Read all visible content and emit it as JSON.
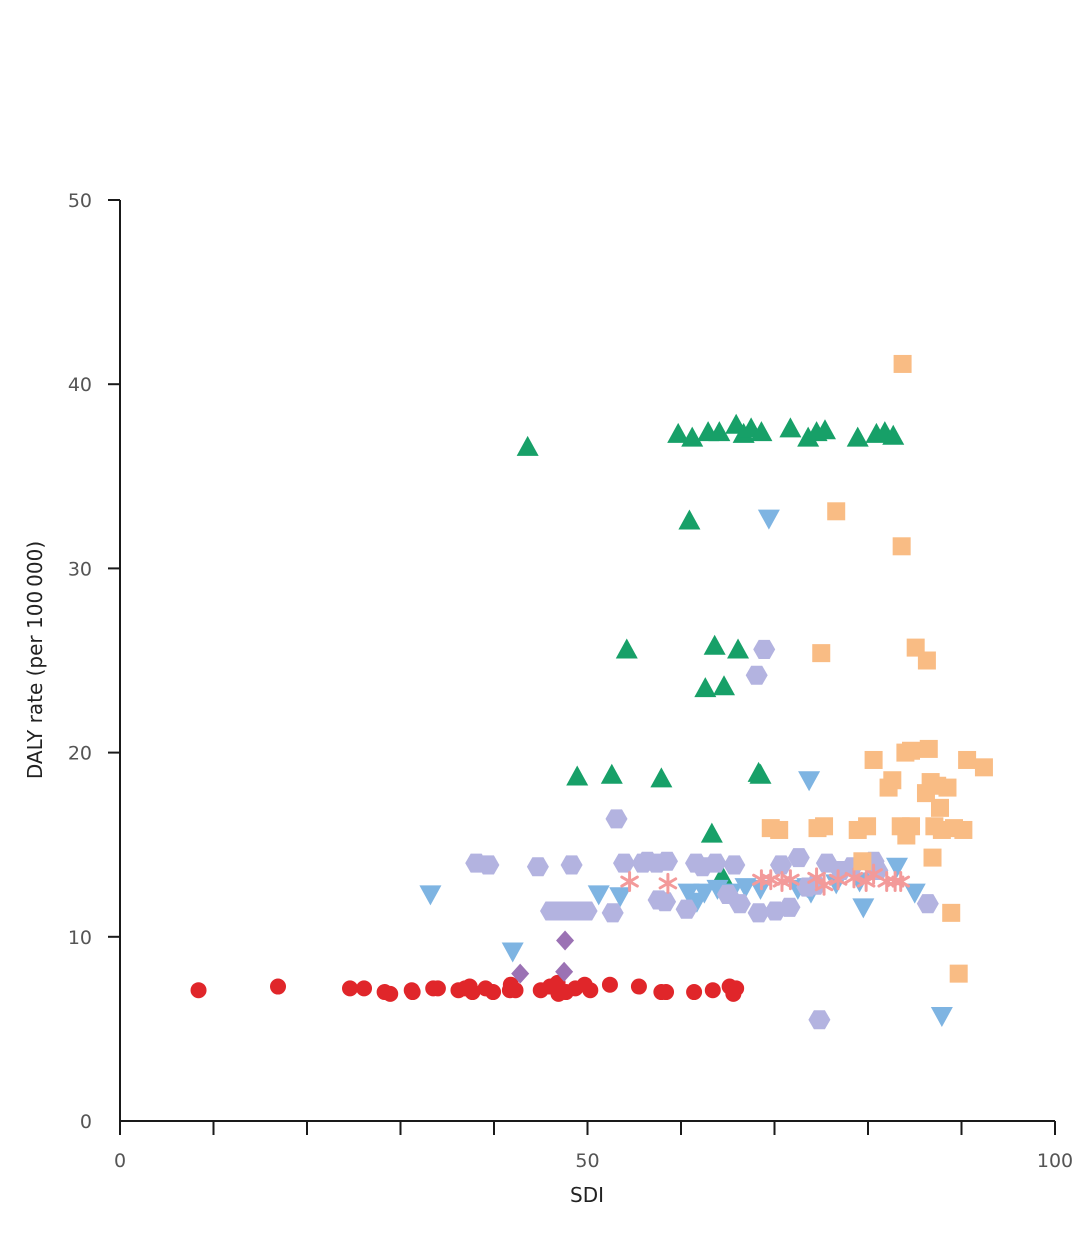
{
  "chart_data": {
    "type": "scatter",
    "xlabel": "SDI",
    "ylabel": "DALY rate (per 100 000)",
    "xlim": [
      0,
      100
    ],
    "ylim": [
      0,
      50
    ],
    "x_ticks": [
      0,
      50,
      100
    ],
    "x_tick_labels": [
      "0",
      "50",
      "100"
    ],
    "x_minor_ticks": [
      10,
      20,
      30,
      40,
      60,
      70,
      80,
      90
    ],
    "y_ticks": [
      0,
      10,
      20,
      30,
      40,
      50
    ],
    "y_tick_labels": [
      "0",
      "10",
      "20",
      "30",
      "40",
      "50"
    ],
    "grid": false,
    "legend": "none",
    "series": [
      {
        "marker": "circle",
        "color": "#e0262a",
        "points": [
          [
            8.4,
            7.1
          ],
          [
            16.9,
            7.3
          ],
          [
            24.6,
            7.2
          ],
          [
            26.1,
            7.2
          ],
          [
            28.3,
            7.0
          ],
          [
            28.9,
            6.9
          ],
          [
            31.2,
            7.1
          ],
          [
            31.3,
            7.0
          ],
          [
            33.5,
            7.2
          ],
          [
            34.0,
            7.2
          ],
          [
            36.2,
            7.1
          ],
          [
            36.9,
            7.2
          ],
          [
            37.4,
            7.3
          ],
          [
            37.7,
            7.0
          ],
          [
            39.1,
            7.2
          ],
          [
            39.9,
            7.0
          ],
          [
            41.7,
            7.1
          ],
          [
            41.8,
            7.4
          ],
          [
            42.3,
            7.1
          ],
          [
            45.0,
            7.1
          ],
          [
            46.0,
            7.3
          ],
          [
            46.8,
            7.5
          ],
          [
            46.9,
            6.9
          ],
          [
            47.7,
            7.0
          ],
          [
            48.7,
            7.2
          ],
          [
            49.7,
            7.4
          ],
          [
            50.3,
            7.1
          ],
          [
            52.4,
            7.4
          ],
          [
            55.5,
            7.3
          ],
          [
            57.9,
            7.0
          ],
          [
            58.4,
            7.0
          ],
          [
            61.4,
            7.0
          ],
          [
            63.4,
            7.1
          ],
          [
            65.2,
            7.3
          ],
          [
            65.9,
            7.2
          ],
          [
            65.6,
            6.9
          ]
        ]
      },
      {
        "marker": "diamond",
        "color": "#9b72b4",
        "points": [
          [
            42.8,
            8.0
          ],
          [
            47.6,
            9.8
          ],
          [
            47.5,
            8.1
          ]
        ]
      },
      {
        "marker": "triangle-up",
        "color": "#17a068",
        "points": [
          [
            43.6,
            36.6
          ],
          [
            48.9,
            18.7
          ],
          [
            52.6,
            18.8
          ],
          [
            54.2,
            25.6
          ],
          [
            57.9,
            18.6
          ],
          [
            59.7,
            37.3
          ],
          [
            60.9,
            32.6
          ],
          [
            61.2,
            37.1
          ],
          [
            62.6,
            23.5
          ],
          [
            62.9,
            37.4
          ],
          [
            63.3,
            15.6
          ],
          [
            63.6,
            25.8
          ],
          [
            64.1,
            37.4
          ],
          [
            64.4,
            13.3
          ],
          [
            64.6,
            23.6
          ],
          [
            65.9,
            37.8
          ],
          [
            66.1,
            25.6
          ],
          [
            66.7,
            37.3
          ],
          [
            67.5,
            37.6
          ],
          [
            68.5,
            18.8
          ],
          [
            68.6,
            37.4
          ],
          [
            68.3,
            18.9
          ],
          [
            71.7,
            37.6
          ],
          [
            73.6,
            37.1
          ],
          [
            74.5,
            37.4
          ],
          [
            75.4,
            37.5
          ],
          [
            78.9,
            37.1
          ],
          [
            80.9,
            37.3
          ],
          [
            81.8,
            37.4
          ],
          [
            82.7,
            37.2
          ]
        ]
      },
      {
        "marker": "triangle-down",
        "color": "#7eb4e2",
        "points": [
          [
            33.2,
            12.3
          ],
          [
            42.0,
            9.2
          ],
          [
            51.2,
            12.3
          ],
          [
            53.5,
            12.2
          ],
          [
            60.8,
            12.4
          ],
          [
            61.7,
            11.9
          ],
          [
            62.5,
            12.4
          ],
          [
            63.9,
            12.6
          ],
          [
            65.4,
            12.4
          ],
          [
            66.9,
            12.7
          ],
          [
            68.5,
            12.6
          ],
          [
            69.4,
            32.7
          ],
          [
            72.5,
            12.6
          ],
          [
            73.5,
            12.7
          ],
          [
            73.7,
            18.5
          ],
          [
            73.9,
            12.4
          ],
          [
            76.6,
            12.9
          ],
          [
            79.1,
            13.0
          ],
          [
            79.5,
            11.6
          ],
          [
            83.1,
            13.8
          ],
          [
            85.0,
            12.4
          ],
          [
            87.9,
            5.7
          ]
        ]
      },
      {
        "marker": "hexagon",
        "color": "#b3b3e0",
        "points": [
          [
            38.1,
            14.0
          ],
          [
            39.4,
            13.9
          ],
          [
            44.7,
            13.8
          ],
          [
            46.1,
            11.4
          ],
          [
            47.1,
            11.4
          ],
          [
            47.8,
            11.4
          ],
          [
            48.3,
            13.9
          ],
          [
            48.9,
            11.4
          ],
          [
            49.9,
            11.4
          ],
          [
            52.7,
            11.3
          ],
          [
            53.1,
            16.4
          ],
          [
            53.9,
            14.0
          ],
          [
            55.9,
            14.0
          ],
          [
            56.4,
            14.1
          ],
          [
            57.4,
            14.0
          ],
          [
            57.6,
            12.0
          ],
          [
            58.3,
            11.9
          ],
          [
            58.5,
            14.1
          ],
          [
            60.6,
            11.5
          ],
          [
            61.6,
            14.0
          ],
          [
            62.3,
            13.8
          ],
          [
            63.7,
            14.0
          ],
          [
            65.0,
            12.3
          ],
          [
            65.7,
            13.9
          ],
          [
            66.3,
            11.8
          ],
          [
            68.1,
            24.2
          ],
          [
            68.3,
            11.3
          ],
          [
            68.9,
            25.6
          ],
          [
            70.1,
            11.4
          ],
          [
            70.7,
            13.9
          ],
          [
            71.6,
            11.6
          ],
          [
            72.6,
            14.3
          ],
          [
            73.5,
            12.7
          ],
          [
            74.8,
            5.5
          ],
          [
            74.4,
            12.8
          ],
          [
            75.6,
            14.0
          ],
          [
            77.1,
            13.6
          ],
          [
            78.3,
            13.8
          ],
          [
            80.6,
            14.1
          ],
          [
            81.0,
            13.6
          ],
          [
            86.4,
            11.8
          ]
        ]
      },
      {
        "marker": "asterisk",
        "color": "#f39a9a",
        "points": [
          [
            54.5,
            13.0
          ],
          [
            58.6,
            12.9
          ],
          [
            68.6,
            13.1
          ],
          [
            69.6,
            13.1
          ],
          [
            70.8,
            13.0
          ],
          [
            71.7,
            13.1
          ],
          [
            74.5,
            13.2
          ],
          [
            75.3,
            12.8
          ],
          [
            76.8,
            13.1
          ],
          [
            78.5,
            13.2
          ],
          [
            79.8,
            13.0
          ],
          [
            80.6,
            13.4
          ],
          [
            82.0,
            13.0
          ],
          [
            82.9,
            13.0
          ],
          [
            83.5,
            13.0
          ]
        ]
      },
      {
        "marker": "square",
        "color": "#f9bc84",
        "points": [
          [
            69.6,
            15.9
          ],
          [
            70.5,
            15.8
          ],
          [
            74.6,
            15.9
          ],
          [
            75.0,
            25.4
          ],
          [
            75.3,
            16.0
          ],
          [
            76.6,
            33.1
          ],
          [
            78.9,
            15.8
          ],
          [
            79.4,
            14.1
          ],
          [
            79.9,
            16.0
          ],
          [
            80.6,
            19.6
          ],
          [
            82.2,
            18.1
          ],
          [
            82.6,
            18.5
          ],
          [
            83.7,
            41.1
          ],
          [
            83.6,
            31.2
          ],
          [
            83.5,
            16.0
          ],
          [
            84.1,
            15.5
          ],
          [
            84.0,
            20.0
          ],
          [
            84.6,
            16.0
          ],
          [
            84.6,
            20.1
          ],
          [
            85.1,
            25.7
          ],
          [
            86.2,
            17.8
          ],
          [
            86.3,
            25.0
          ],
          [
            86.5,
            20.2
          ],
          [
            86.7,
            18.4
          ],
          [
            86.9,
            14.3
          ],
          [
            87.1,
            16.0
          ],
          [
            87.4,
            18.2
          ],
          [
            87.7,
            17.0
          ],
          [
            87.9,
            15.8
          ],
          [
            88.5,
            18.1
          ],
          [
            88.9,
            11.3
          ],
          [
            89.7,
            8.0
          ],
          [
            89.2,
            15.9
          ],
          [
            90.2,
            15.8
          ],
          [
            90.6,
            19.6
          ],
          [
            92.4,
            19.2
          ]
        ]
      }
    ]
  }
}
